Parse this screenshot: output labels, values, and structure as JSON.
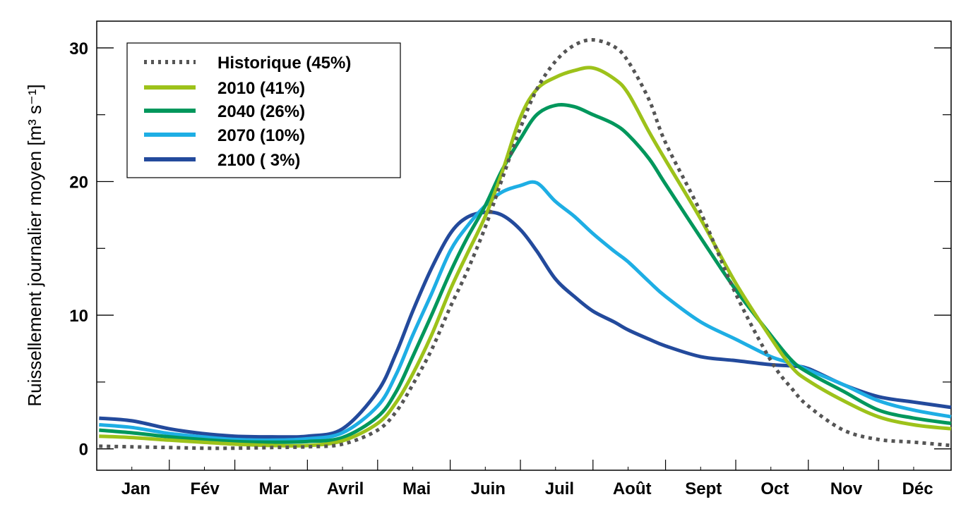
{
  "chart_data": {
    "type": "line",
    "title": "",
    "xlabel": "",
    "ylabel": "Ruissellement journalier moyen [m³ s⁻¹]",
    "xlim": [
      0,
      365
    ],
    "ylim": [
      -1.6,
      32
    ],
    "grid": false,
    "legend_position": "top-left",
    "y_ticks": [
      "0",
      "10",
      "20",
      "30"
    ],
    "y_tick_values": [
      0,
      10,
      20,
      30
    ],
    "y_minor_ticks": [
      5,
      15,
      25
    ],
    "month_labels": [
      "Jan",
      "Fév",
      "Mar",
      "Avril",
      "Mai",
      "Juin",
      "Juil",
      "Août",
      "Sept",
      "Oct",
      "Nov",
      "Déc"
    ],
    "x": [
      1,
      15,
      31,
      45,
      59,
      75,
      90,
      105,
      120,
      128,
      135,
      143,
      151,
      158,
      166,
      173,
      181,
      188,
      196,
      204,
      212,
      221,
      227,
      236,
      243,
      258,
      273,
      288,
      297,
      304,
      319,
      334,
      349,
      365
    ],
    "series": [
      {
        "name": "Historique (45%)",
        "color": "#555555",
        "style": "dotted",
        "values": [
          0.2,
          0.15,
          0.1,
          0.05,
          0.05,
          0.1,
          0.15,
          0.35,
          1.4,
          2.8,
          4.8,
          7.4,
          10.6,
          13.2,
          16.6,
          20.1,
          24.0,
          26.9,
          29.0,
          30.2,
          30.6,
          30.1,
          29.0,
          26.1,
          22.9,
          17.7,
          11.6,
          6.6,
          4.5,
          3.2,
          1.4,
          0.7,
          0.5,
          0.25
        ]
      },
      {
        "name": "2010 (41%)",
        "color": "#9dc21a",
        "style": "solid",
        "values": [
          0.95,
          0.85,
          0.65,
          0.5,
          0.35,
          0.25,
          0.25,
          0.6,
          1.9,
          3.5,
          5.6,
          8.5,
          11.9,
          14.5,
          17.4,
          20.6,
          24.8,
          26.9,
          27.8,
          28.3,
          28.5,
          27.7,
          26.6,
          23.7,
          21.6,
          17.2,
          12.4,
          8.3,
          6.1,
          5.1,
          3.6,
          2.4,
          1.8,
          1.5
        ]
      },
      {
        "name": "2040 (26%)",
        "color": "#00975c",
        "style": "solid",
        "values": [
          1.4,
          1.2,
          0.9,
          0.7,
          0.55,
          0.5,
          0.55,
          0.85,
          2.4,
          4.3,
          6.9,
          10.0,
          13.2,
          15.7,
          18.2,
          20.8,
          23.2,
          25.0,
          25.7,
          25.6,
          25.0,
          24.3,
          23.5,
          21.7,
          19.8,
          15.8,
          11.9,
          8.5,
          6.6,
          5.7,
          4.3,
          2.9,
          2.3,
          1.9
        ]
      },
      {
        "name": "2070 (10%)",
        "color": "#1eaee4",
        "style": "solid",
        "values": [
          1.8,
          1.6,
          1.15,
          0.9,
          0.7,
          0.65,
          0.75,
          1.2,
          3.2,
          5.6,
          8.5,
          11.6,
          14.8,
          16.6,
          18.2,
          19.2,
          19.7,
          19.9,
          18.5,
          17.4,
          16.1,
          14.8,
          14.0,
          12.5,
          11.4,
          9.5,
          8.2,
          6.9,
          6.4,
          5.9,
          4.8,
          3.6,
          2.9,
          2.4
        ]
      },
      {
        "name": "2100 ( 3%)",
        "color": "#234a9c",
        "style": "solid",
        "values": [
          2.3,
          2.1,
          1.5,
          1.15,
          0.95,
          0.9,
          0.95,
          1.5,
          4.3,
          7.2,
          10.3,
          13.5,
          16.1,
          17.3,
          17.7,
          17.5,
          16.4,
          14.8,
          12.7,
          11.4,
          10.3,
          9.5,
          8.9,
          8.2,
          7.7,
          6.9,
          6.6,
          6.3,
          6.2,
          6.0,
          4.8,
          3.9,
          3.5,
          3.1
        ]
      }
    ]
  }
}
